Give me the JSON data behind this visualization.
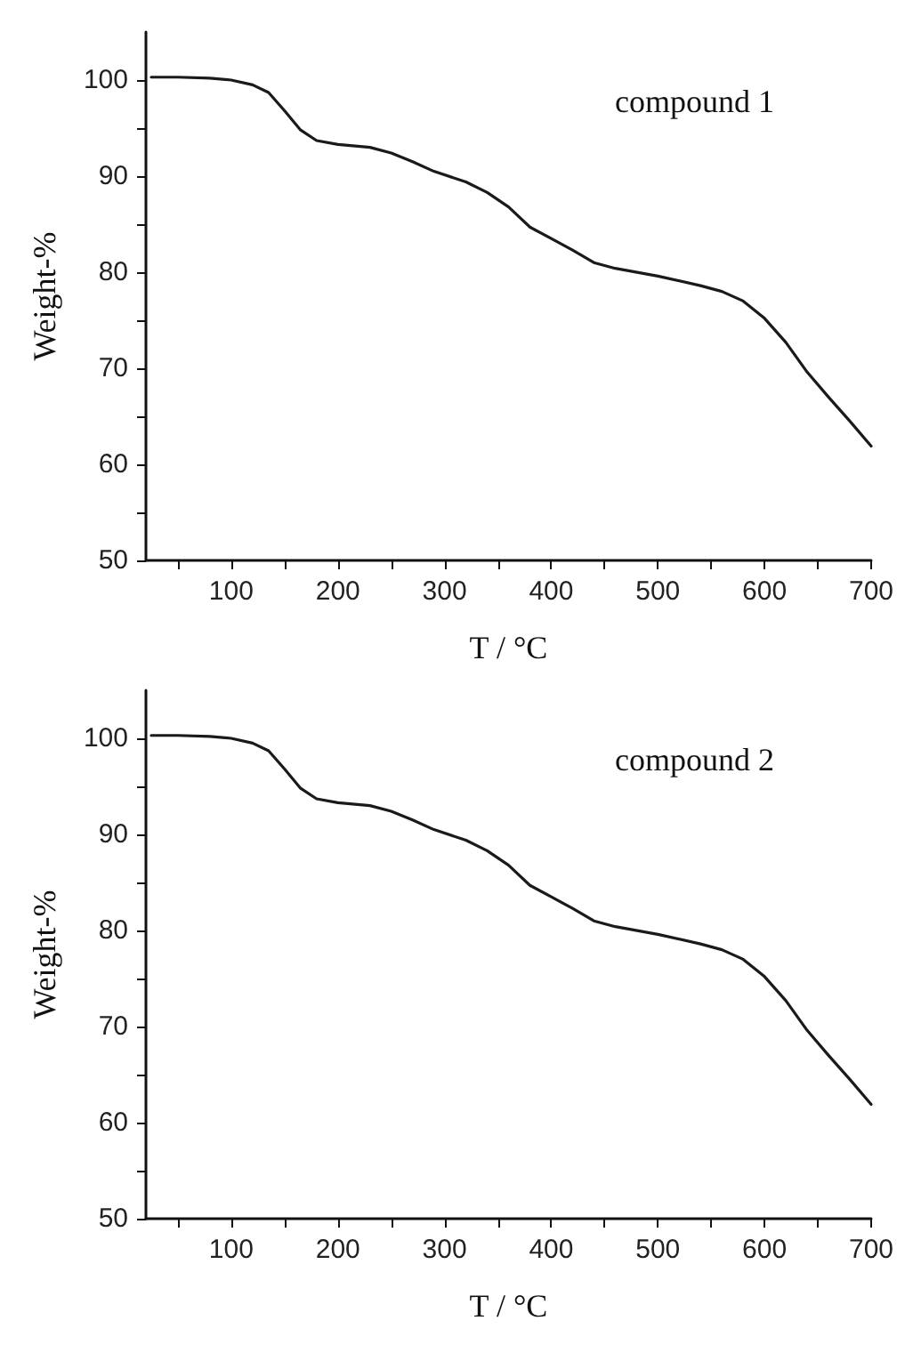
{
  "chart_data": [
    {
      "type": "line",
      "xlabel": "T / °C",
      "ylabel": "Weight-%",
      "annotations": [
        "compound 1"
      ],
      "color": "#1a1a1a",
      "grid": false,
      "marker": "none",
      "line_style": "solid",
      "x": [
        25,
        50,
        80,
        100,
        120,
        135,
        150,
        165,
        180,
        200,
        230,
        250,
        270,
        290,
        320,
        340,
        360,
        380,
        400,
        420,
        440,
        460,
        500,
        540,
        560,
        580,
        600,
        620,
        640,
        660,
        680,
        700
      ],
      "values": [
        100.3,
        100.3,
        100.2,
        100.0,
        99.5,
        98.7,
        96.8,
        94.8,
        93.7,
        93.3,
        93.0,
        92.4,
        91.5,
        90.5,
        89.4,
        88.3,
        86.8,
        84.7,
        83.5,
        82.3,
        81.0,
        80.4,
        79.6,
        78.6,
        78.0,
        77.0,
        75.2,
        72.7,
        69.6,
        67.0,
        64.5,
        61.9
      ],
      "xlim": [
        20,
        700
      ],
      "ylim": [
        50,
        105
      ],
      "xticks": [
        {
          "value": 50,
          "label": null
        },
        100,
        {
          "value": 150,
          "label": null
        },
        200,
        {
          "value": 250,
          "label": null
        },
        300,
        {
          "value": 350,
          "label": null
        },
        400,
        {
          "value": 450,
          "label": null
        },
        500,
        {
          "value": 550,
          "label": null
        },
        600,
        {
          "value": 650,
          "label": null
        },
        700
      ],
      "yticks": [
        50,
        {
          "value": 55,
          "label": null
        },
        60,
        {
          "value": 65,
          "label": null
        },
        70,
        {
          "value": 75,
          "label": null
        },
        80,
        {
          "value": 85,
          "label": null
        },
        90,
        {
          "value": 95,
          "label": null
        },
        100
      ]
    },
    {
      "type": "line",
      "xlabel": "T / °C",
      "ylabel": "Weight-%",
      "annotations": [
        "compound 2"
      ],
      "color": "#1a1a1a",
      "grid": false,
      "marker": "none",
      "line_style": "solid",
      "x": [
        25,
        50,
        80,
        100,
        120,
        135,
        150,
        165,
        180,
        200,
        230,
        250,
        270,
        290,
        320,
        340,
        360,
        380,
        400,
        420,
        440,
        460,
        500,
        540,
        560,
        580,
        600,
        620,
        640,
        660,
        680,
        700
      ],
      "values": [
        100.3,
        100.3,
        100.2,
        100.0,
        99.5,
        98.7,
        96.8,
        94.8,
        93.7,
        93.3,
        93.0,
        92.4,
        91.5,
        90.5,
        89.4,
        88.3,
        86.8,
        84.7,
        83.5,
        82.3,
        81.0,
        80.4,
        79.6,
        78.6,
        78.0,
        77.0,
        75.2,
        72.7,
        69.6,
        67.0,
        64.5,
        61.9
      ],
      "xlim": [
        20,
        700
      ],
      "ylim": [
        50,
        105
      ],
      "xticks": [
        {
          "value": 50,
          "label": null
        },
        100,
        {
          "value": 150,
          "label": null
        },
        200,
        {
          "value": 250,
          "label": null
        },
        300,
        {
          "value": 350,
          "label": null
        },
        400,
        {
          "value": 450,
          "label": null
        },
        500,
        {
          "value": 550,
          "label": null
        },
        600,
        {
          "value": 650,
          "label": null
        },
        700
      ],
      "yticks": [
        50,
        {
          "value": 55,
          "label": null
        },
        60,
        {
          "value": 65,
          "label": null
        },
        70,
        {
          "value": 75,
          "label": null
        },
        80,
        {
          "value": 85,
          "label": null
        },
        90,
        {
          "value": 95,
          "label": null
        },
        100
      ]
    }
  ]
}
